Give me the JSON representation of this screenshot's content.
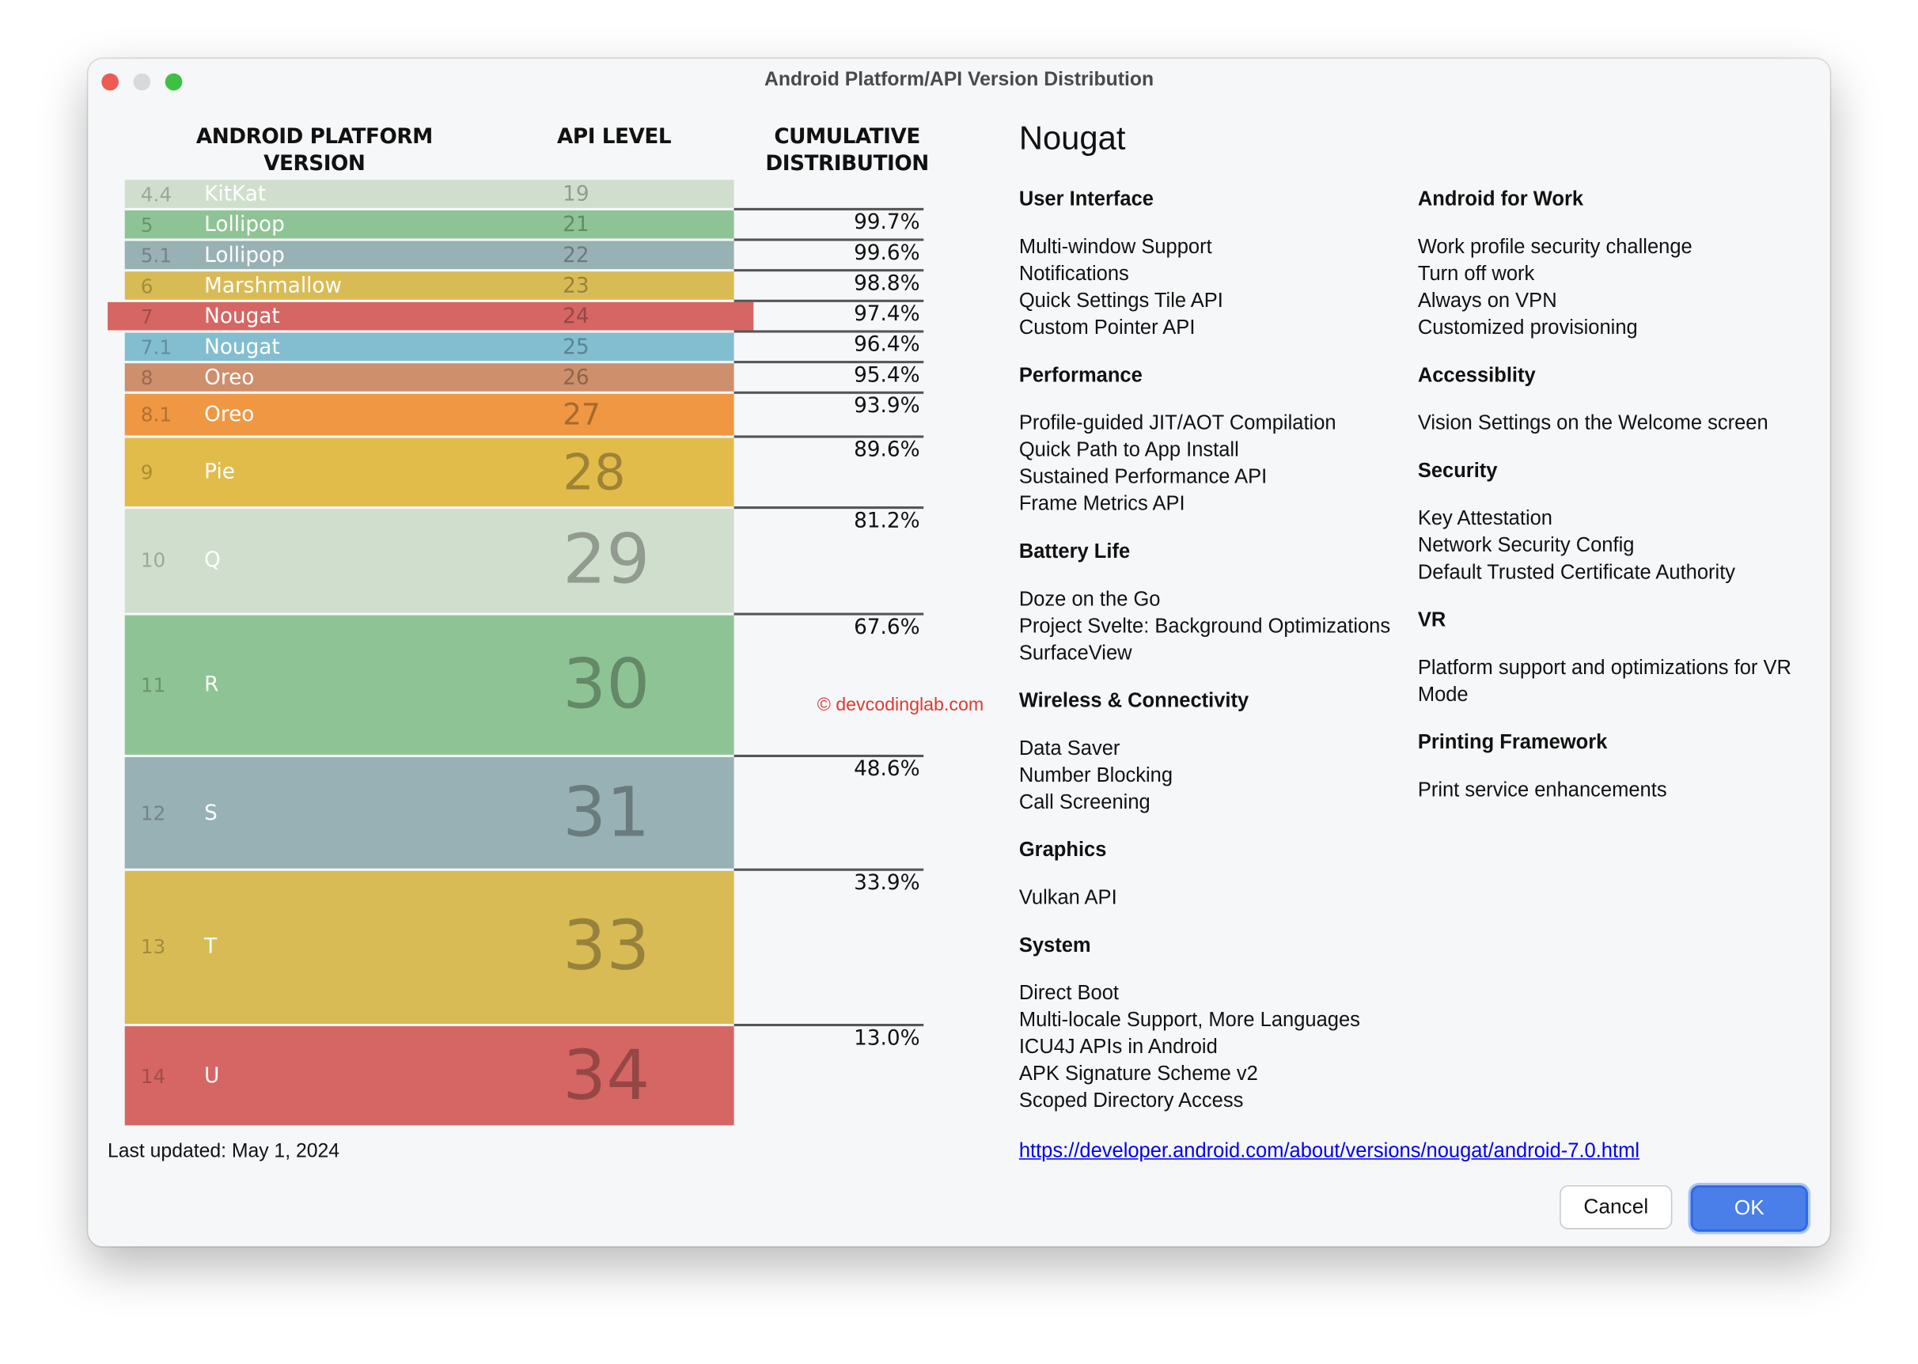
{
  "window": {
    "title": "Android Platform/API Version Distribution"
  },
  "headers": {
    "version": "ANDROID PLATFORM VERSION",
    "api": "API LEVEL",
    "cumulative": "CUMULATIVE DISTRIBUTION"
  },
  "selected": "7",
  "rows": [
    {
      "version": "4.4",
      "name": "KitKat",
      "api": "19",
      "cumulative": null,
      "share": 0.3,
      "color": "#d0dfcd"
    },
    {
      "version": "5",
      "name": "Lollipop",
      "api": "21",
      "cumulative": "99.7%",
      "share": 0.1,
      "color": "#8ec495"
    },
    {
      "version": "5.1",
      "name": "Lollipop",
      "api": "22",
      "cumulative": "99.6%",
      "share": 0.8,
      "color": "#98b1b5"
    },
    {
      "version": "6",
      "name": "Marshmallow",
      "api": "23",
      "cumulative": "98.8%",
      "share": 1.4,
      "color": "#d9bb55"
    },
    {
      "version": "7",
      "name": "Nougat",
      "api": "24",
      "cumulative": "97.4%",
      "share": 1.0,
      "color": "#d66663"
    },
    {
      "version": "7.1",
      "name": "Nougat",
      "api": "25",
      "cumulative": "96.4%",
      "share": 1.0,
      "color": "#82bed0"
    },
    {
      "version": "8",
      "name": "Oreo",
      "api": "26",
      "cumulative": "95.4%",
      "share": 1.5,
      "color": "#cd8f6c"
    },
    {
      "version": "8.1",
      "name": "Oreo",
      "api": "27",
      "cumulative": "93.9%",
      "share": 4.3,
      "color": "#ef9743"
    },
    {
      "version": "9",
      "name": "Pie",
      "api": "28",
      "cumulative": "89.6%",
      "share": 8.4,
      "color": "#e2bc4b"
    },
    {
      "version": "10",
      "name": "Q",
      "api": "29",
      "cumulative": "81.2%",
      "share": 13.6,
      "color": "#d0dfcd"
    },
    {
      "version": "11",
      "name": "R",
      "api": "30",
      "cumulative": "67.6%",
      "share": 19.0,
      "color": "#8ec495"
    },
    {
      "version": "12",
      "name": "S",
      "api": "31",
      "cumulative": "48.6%",
      "share": 14.7,
      "color": "#98b1b5"
    },
    {
      "version": "13",
      "name": "T",
      "api": "33",
      "cumulative": "33.9%",
      "share": 20.9,
      "color": "#d9bb55"
    },
    {
      "version": "14",
      "name": "U",
      "api": "34",
      "cumulative": "13.0%",
      "share": 13.0,
      "color": "#d66663"
    }
  ],
  "watermark": "© devcodinglab.com",
  "last_updated": "Last updated: May 1, 2024",
  "detail": {
    "title": "Nougat",
    "left": [
      {
        "heading": "User Interface",
        "items": [
          "Multi-window Support",
          "Notifications",
          "Quick Settings Tile API",
          "Custom Pointer API"
        ]
      },
      {
        "heading": "Performance",
        "items": [
          "Profile-guided JIT/AOT Compilation",
          "Quick Path to App Install",
          "Sustained Performance API",
          "Frame Metrics API"
        ]
      },
      {
        "heading": "Battery Life",
        "items": [
          "Doze on the Go",
          "Project Svelte: Background Optimizations",
          "SurfaceView"
        ]
      },
      {
        "heading": "Wireless & Connectivity",
        "items": [
          "Data Saver",
          "Number Blocking",
          "Call Screening"
        ]
      },
      {
        "heading": "Graphics",
        "items": [
          "Vulkan API"
        ]
      },
      {
        "heading": "System",
        "items": [
          "Direct Boot",
          "Multi-locale Support, More Languages",
          "ICU4J APIs in Android",
          "APK Signature Scheme v2",
          "Scoped Directory Access"
        ]
      }
    ],
    "right": [
      {
        "heading": "Android for Work",
        "items": [
          "Work profile security challenge",
          "Turn off work",
          "Always on VPN",
          "Customized provisioning"
        ]
      },
      {
        "heading": "Accessiblity",
        "items": [
          "Vision Settings on the Welcome screen"
        ]
      },
      {
        "heading": "Security",
        "items": [
          "Key Attestation",
          "Network Security Config",
          "Default Trusted Certificate Authority"
        ]
      },
      {
        "heading": "VR",
        "items": [
          "Platform support and optimizations for VR Mode"
        ]
      },
      {
        "heading": "Printing Framework",
        "items": [
          "Print service enhancements"
        ]
      }
    ],
    "link": "https://developer.android.com/about/versions/nougat/android-7.0.html"
  },
  "buttons": {
    "cancel": "Cancel",
    "ok": "OK"
  }
}
